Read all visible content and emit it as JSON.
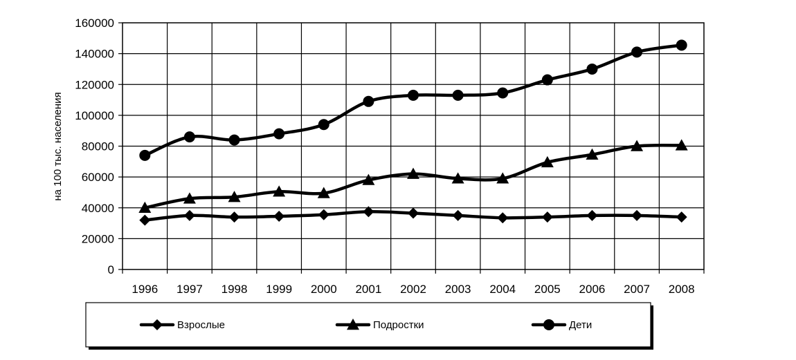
{
  "chart_data": {
    "type": "line",
    "title": "",
    "xlabel": "",
    "ylabel": "на 100 тыс. населения",
    "categories": [
      "1996",
      "1997",
      "1998",
      "1999",
      "2000",
      "2001",
      "2002",
      "2003",
      "2004",
      "2005",
      "2006",
      "2007",
      "2008"
    ],
    "yticks": [
      "0",
      "20000",
      "40000",
      "60000",
      "80000",
      "100000",
      "120000",
      "140000",
      "160000"
    ],
    "ylim": [
      0,
      160000
    ],
    "grid": true,
    "legend_position": "bottom",
    "series": [
      {
        "name": "Взрослые",
        "marker": "diamond",
        "color": "#000000",
        "values": [
          32000,
          35000,
          34000,
          34500,
          35500,
          37500,
          36500,
          35000,
          33500,
          34000,
          35000,
          35000,
          34000
        ]
      },
      {
        "name": "Подростки",
        "marker": "triangle",
        "color": "#000000",
        "values": [
          40000,
          46000,
          47000,
          50500,
          49500,
          58000,
          62000,
          59000,
          59000,
          69500,
          74500,
          80000,
          80500
        ]
      },
      {
        "name": "Дети",
        "marker": "circle",
        "color": "#000000",
        "values": [
          74000,
          86000,
          84000,
          88000,
          94000,
          109000,
          113000,
          113000,
          114500,
          123000,
          130000,
          141000,
          145500
        ]
      }
    ]
  }
}
